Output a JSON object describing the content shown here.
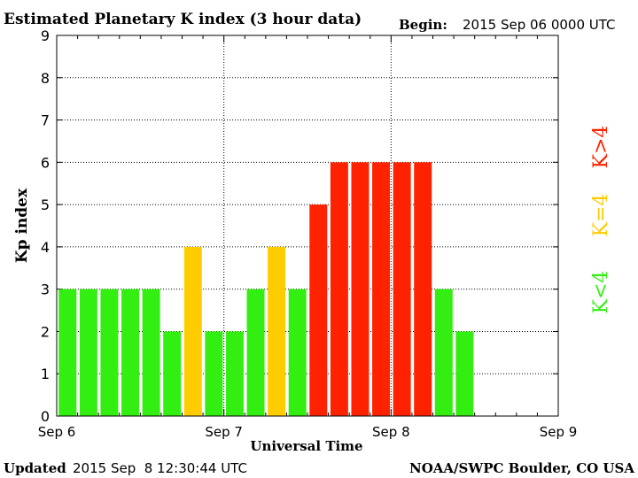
{
  "chart_data": {
    "type": "bar",
    "title": "Estimated Planetary K index (3 hour data)",
    "begin_label": "Begin:",
    "begin_value": "2015 Sep 06 0000 UTC",
    "xlabel": "Universal Time",
    "ylabel": "Kp index",
    "ylim": [
      0,
      9
    ],
    "yticks": [
      "0",
      "1",
      "2",
      "3",
      "4",
      "5",
      "6",
      "7",
      "8",
      "9"
    ],
    "xticks": [
      "Sep 6",
      "Sep 7",
      "Sep 8",
      "Sep 9"
    ],
    "values": [
      3,
      3,
      3,
      3,
      3,
      2,
      4,
      2,
      2,
      3,
      4,
      3,
      5,
      6,
      6,
      6,
      6,
      6,
      3,
      2
    ],
    "legend": [
      {
        "label": "K<4",
        "color": "#33ee11"
      },
      {
        "label": "K=4",
        "color": "#ffcc00"
      },
      {
        "label": "K>4",
        "color": "#ff2200"
      }
    ],
    "colors": {
      "low": "#33ee11",
      "mid": "#ffcc00",
      "high": "#ff2200"
    },
    "grid": true
  },
  "footer": {
    "updated_label": "Updated",
    "updated_value": "2015 Sep  8 12:30:44 UTC",
    "credit": "NOAA/SWPC Boulder, CO USA"
  }
}
